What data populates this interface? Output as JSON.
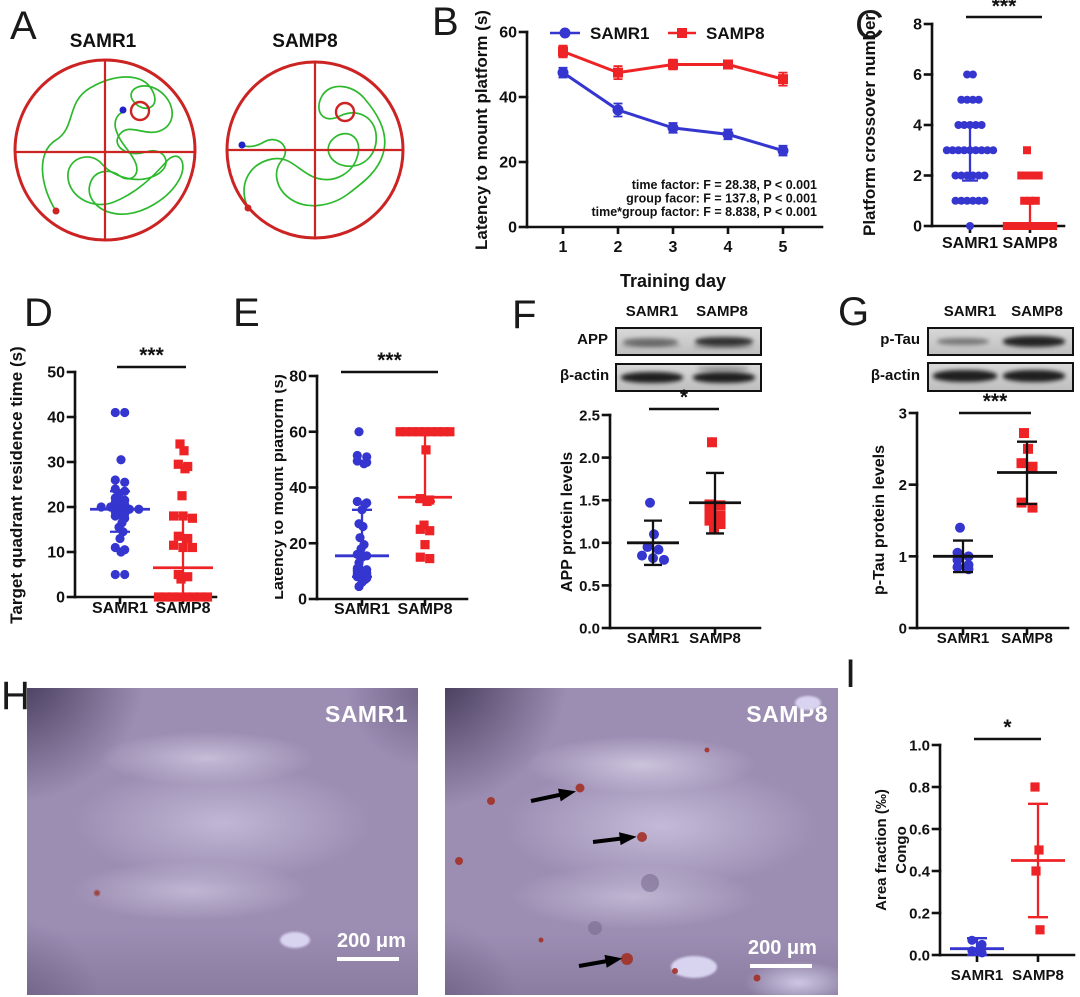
{
  "colors": {
    "samr1_blue": "#3535cf",
    "samp8_red": "#ee2326",
    "maze_red": "#cc2323",
    "trace_green": "#2db92d"
  },
  "panels": {
    "A": {
      "label": "A",
      "plots": [
        {
          "title": "SAMR1"
        },
        {
          "title": "SAMP8"
        }
      ]
    },
    "B": {
      "label": "B"
    },
    "C": {
      "label": "C"
    },
    "D": {
      "label": "D"
    },
    "E": {
      "label": "E"
    },
    "F": {
      "label": "F",
      "blot": {
        "col1": "SAMR1",
        "col2": "SAMP8",
        "rows": [
          "APP",
          "β-actin"
        ]
      }
    },
    "G": {
      "label": "G",
      "blot": {
        "col1": "SAMR1",
        "col2": "SAMP8",
        "rows": [
          "p-Tau",
          "β-actin"
        ]
      }
    },
    "H": {
      "label": "H",
      "images": [
        {
          "title": "SAMR1",
          "scale_bar": "200 μm"
        },
        {
          "title": "SAMP8",
          "scale_bar": "200 μm",
          "arrow_count": 3
        }
      ]
    },
    "I": {
      "label": "I"
    }
  },
  "chart_data": [
    {
      "id": "B",
      "type": "line",
      "ylabel": "Latency to mount platform (s)",
      "xlabel": "Training day",
      "x": [
        "1",
        "2",
        "3",
        "4",
        "5"
      ],
      "ylim": [
        0,
        60
      ],
      "yticks": [
        0,
        20,
        40,
        60
      ],
      "legend_position": "top-inside",
      "grid": false,
      "series": [
        {
          "name": "SAMR1",
          "color": "#3535cf",
          "marker": "circle",
          "values": [
            47.5,
            36,
            30.5,
            28.5,
            23.5
          ],
          "err": [
            1.5,
            2,
            1.5,
            1.5,
            1.5
          ]
        },
        {
          "name": "SAMP8",
          "color": "#ee2326",
          "marker": "square",
          "values": [
            54,
            47.5,
            50,
            50,
            45.5
          ],
          "err": [
            1.8,
            2,
            1.5,
            1.2,
            2
          ]
        }
      ],
      "annotations": [
        "time factor:  F = 28.38, P < 0.001",
        "group facor:  F = 137.8, P < 0.001",
        "time*group factor:  F = 8.838, P < 0.001"
      ]
    },
    {
      "id": "C",
      "type": "scatter",
      "ylabel": "Platform crossover number",
      "ylim": [
        0,
        8
      ],
      "yticks": [
        0,
        2,
        4,
        6,
        8
      ],
      "sig": "***",
      "groups": [
        {
          "name": "SAMR1",
          "color": "#3535cf",
          "marker": "circle",
          "values": [
            6,
            6,
            5,
            5,
            5,
            5,
            4,
            4,
            4,
            4,
            4,
            3,
            3,
            3,
            3,
            3,
            3,
            3,
            3,
            3,
            2,
            2,
            2,
            2,
            2,
            2,
            1,
            1,
            1,
            1,
            1,
            1,
            0
          ],
          "center": 3,
          "lo": 1.8,
          "hi": 4
        },
        {
          "name": "SAMP8",
          "color": "#ee2326",
          "marker": "square",
          "values": [
            3,
            2,
            2,
            2,
            2,
            1,
            1,
            1,
            0,
            0,
            0,
            0,
            0,
            0,
            0,
            0,
            0
          ],
          "center": 0,
          "lo": 0,
          "hi": 1
        }
      ]
    },
    {
      "id": "D",
      "type": "scatter",
      "ylabel": "Target quadrant residence time (s)",
      "ylim": [
        0,
        50
      ],
      "yticks": [
        0,
        10,
        20,
        30,
        40,
        50
      ],
      "sig": "***",
      "groups": [
        {
          "name": "SAMR1",
          "color": "#3535cf",
          "marker": "circle",
          "values": [
            41,
            41,
            30.5,
            26,
            25.5,
            24,
            23.5,
            23,
            22,
            21.5,
            21,
            20.5,
            20,
            20,
            20,
            19.5,
            19.5,
            19,
            18.5,
            18,
            17.5,
            16.5,
            15.5,
            14.5,
            13,
            11,
            10.5,
            10,
            5,
            5
          ],
          "center": 19.5,
          "lo": 14.5,
          "hi": 23.5
        },
        {
          "name": "SAMP8",
          "color": "#ee2326",
          "marker": "square",
          "values": [
            34,
            32.5,
            29.5,
            29,
            28.5,
            22.5,
            18,
            18,
            17.5,
            13.5,
            13,
            11.5,
            11,
            11,
            5,
            4.5,
            4,
            0,
            0,
            0,
            0,
            0,
            0,
            0,
            0
          ],
          "center": 6.5,
          "lo": 0,
          "hi": 18
        }
      ]
    },
    {
      "id": "E",
      "type": "scatter",
      "ylabel": "Latency to mount platform (s)",
      "ylim": [
        0,
        80
      ],
      "yticks": [
        0,
        20,
        40,
        60,
        80
      ],
      "sig": "***",
      "groups": [
        {
          "name": "SAMR1",
          "color": "#3535cf",
          "marker": "circle",
          "values": [
            60,
            51.5,
            51,
            49.5,
            49,
            48.5,
            35,
            34.5,
            34,
            32,
            27,
            26,
            22,
            19.5,
            18,
            16,
            15.5,
            15,
            13,
            11,
            10.5,
            10,
            9.5,
            9,
            9,
            8,
            7.5,
            7,
            6,
            4.5
          ],
          "center": 15.5,
          "lo": 8,
          "hi": 32
        },
        {
          "name": "SAMP8",
          "color": "#ee2326",
          "marker": "square",
          "values": [
            60,
            60,
            60,
            60,
            60,
            60,
            60,
            60,
            60,
            53.5,
            36,
            35.5,
            35,
            26.5,
            25,
            24.5,
            19.5,
            15,
            14.5
          ],
          "center": 36.5,
          "lo": 35,
          "hi": 59.5
        }
      ]
    },
    {
      "id": "F",
      "type": "scatter",
      "ylabel": "APP protein levels",
      "ylim": [
        0,
        2.5
      ],
      "yticks": [
        0,
        0.5,
        1,
        1.5,
        2,
        2.5
      ],
      "tick_format": "1dp",
      "sig": "*",
      "groups": [
        {
          "name": "SAMR1",
          "color": "#3535cf",
          "marker": "circle",
          "values": [
            1.47,
            1.1,
            0.95,
            0.92,
            0.85,
            0.82,
            0.8
          ],
          "center": 1.0,
          "lo": 0.74,
          "hi": 1.26
        },
        {
          "name": "SAMP8",
          "color": "#ee2326",
          "marker": "square",
          "values": [
            2.18,
            1.45,
            1.44,
            1.37,
            1.32,
            1.26,
            1.22,
            1.18
          ],
          "center": 1.47,
          "lo": 1.11,
          "hi": 1.82
        }
      ]
    },
    {
      "id": "G",
      "type": "scatter",
      "ylabel": "p-Tau protein levels",
      "ylim": [
        0,
        3
      ],
      "yticks": [
        0,
        1,
        2,
        3
      ],
      "sig": "***",
      "groups": [
        {
          "name": "SAMR1",
          "color": "#3535cf",
          "marker": "circle",
          "values": [
            1.4,
            1.05,
            1.0,
            0.95,
            0.88,
            0.85,
            0.82
          ],
          "center": 1.0,
          "lo": 0.78,
          "hi": 1.22
        },
        {
          "name": "SAMP8",
          "color": "#ee2326",
          "marker": "square",
          "values": [
            2.72,
            2.5,
            2.3,
            2.25,
            1.75,
            1.68
          ],
          "center": 2.17,
          "lo": 1.73,
          "hi": 2.6
        }
      ]
    },
    {
      "id": "I",
      "type": "scatter",
      "ylabel_lines": [
        "Area fraction (‰)",
        "Congo"
      ],
      "ylim": [
        0,
        1
      ],
      "yticks": [
        0,
        0.2,
        0.4,
        0.6,
        0.8,
        1
      ],
      "tick_format": "1dp",
      "sig": "*",
      "groups": [
        {
          "name": "SAMR1",
          "color": "#3535cf",
          "marker": "circle",
          "values": [
            0.07,
            0.05,
            0.02,
            0.01
          ],
          "center": 0.03,
          "lo": 0.0,
          "hi": 0.08
        },
        {
          "name": "SAMP8",
          "color": "#ee2326",
          "marker": "square",
          "values": [
            0.8,
            0.5,
            0.4,
            0.12
          ],
          "center": 0.45,
          "lo": 0.18,
          "hi": 0.72
        }
      ]
    }
  ]
}
